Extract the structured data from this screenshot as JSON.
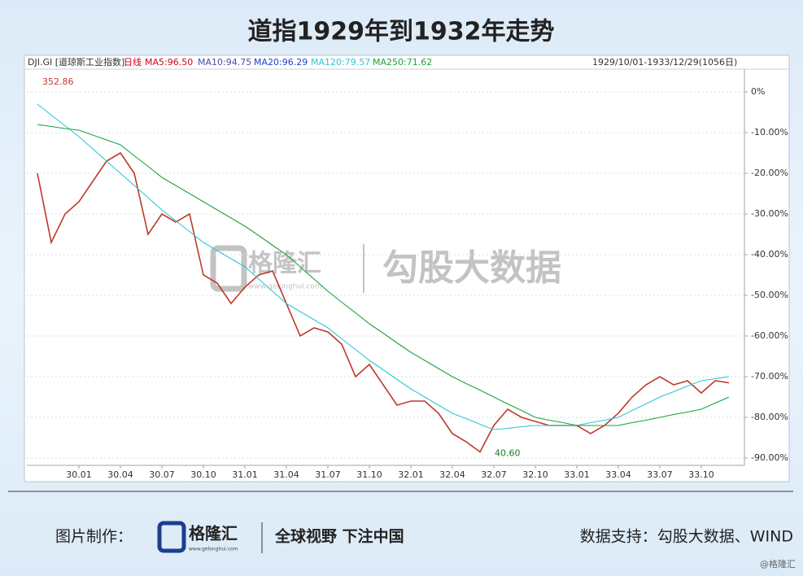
{
  "chart_data": {
    "type": "line",
    "title": "道指1929年到1932年走势",
    "symbol": "DJI.GI [道琼斯工业指数]",
    "period": "日线",
    "indicators": [
      "MA5:96.50",
      "MA10:94.75",
      "MA20:96.29"
    ],
    "range": "1929/10/01-1933/12/29(1056日)",
    "annotations": [
      "352.86",
      "40.60"
    ],
    "categories": [
      null,
      null,
      null,
      "30.01",
      null,
      null,
      "30.04",
      null,
      null,
      "30.07",
      null,
      null,
      "30.10",
      null,
      null,
      "31.01",
      null,
      null,
      "31.04",
      null,
      null,
      "31.07",
      null,
      null,
      "31.10",
      null,
      null,
      "32.01",
      null,
      null,
      "32.04",
      null,
      null,
      "32.07",
      null,
      null,
      "32.10",
      null,
      null,
      "33.01",
      null,
      null,
      "33.04",
      null,
      null,
      "33.07",
      null,
      null,
      "33.10",
      null,
      null
    ],
    "series": [
      {
        "name": "DJI.GI",
        "color": "#c0392b",
        "values": [
          -20,
          -37,
          -30,
          -27,
          -22,
          -17,
          -15,
          -20,
          -35,
          -30,
          -32,
          -30,
          -45,
          -47,
          -52,
          -48,
          -45,
          -44,
          -52,
          -60,
          -58,
          -59,
          -62,
          -70,
          -67,
          -72,
          -77,
          -76,
          -76,
          -79,
          -84,
          -86,
          -88.5,
          -82,
          -78,
          -80,
          -81,
          -82,
          -82,
          -82,
          -84,
          -82,
          -79,
          -75,
          -72,
          -70,
          -72,
          -71,
          -74,
          -71,
          -71.5
        ]
      },
      {
        "name": "MA120:79.57",
        "color": "#2ec7d6",
        "values": [
          -3,
          -5.7,
          -8.3,
          -11,
          -14,
          -17,
          -20,
          -23,
          -26,
          -29,
          -31.7,
          -34.3,
          -37,
          -39,
          -41,
          -43,
          -46,
          -49,
          -52,
          -54,
          -56,
          -58,
          -60.7,
          -63.3,
          -66,
          -68.3,
          -70.7,
          -73,
          -75,
          -77,
          -79,
          -80.3,
          -81.7,
          -83,
          -82.7,
          -82.3,
          -82,
          -82,
          -82,
          -82,
          -81.3,
          -80.7,
          -80,
          -78.3,
          -76.7,
          -75,
          -73.7,
          -72.3,
          -71,
          -70.5,
          -70
        ]
      },
      {
        "name": "MA250:71.62",
        "color": "#1aa33a",
        "values": [
          -8,
          -8.5,
          -9,
          -9.4,
          -10.6,
          -11.8,
          -13,
          -15.7,
          -18.3,
          -21,
          -23,
          -25,
          -27,
          -29,
          -31,
          -33,
          -35.3,
          -37.7,
          -40,
          -43,
          -46,
          -49,
          -51.7,
          -54.3,
          -57,
          -59.3,
          -61.7,
          -64,
          -66,
          -68,
          -70,
          -71.7,
          -73.3,
          -75,
          -76.7,
          -78.3,
          -80,
          -80.7,
          -81.3,
          -82,
          -82,
          -82,
          -82,
          -81.3,
          -80.7,
          -80,
          -79.3,
          -78.7,
          -78,
          -76.5,
          -75
        ]
      }
    ],
    "ylim": [
      -91.8,
      5.6
    ],
    "yticks": [
      {
        "value": 0,
        "label": "0%"
      },
      {
        "value": -10,
        "label": "-10.00%"
      },
      {
        "value": -20,
        "label": "-20.00%"
      },
      {
        "value": -30,
        "label": "-30.00%"
      },
      {
        "value": -40,
        "label": "-40.00%"
      },
      {
        "value": -50,
        "label": "-50.00%"
      },
      {
        "value": -60,
        "label": "-60.00%"
      },
      {
        "value": -70,
        "label": "-70.00%"
      },
      {
        "value": -80,
        "label": "-80.00%"
      },
      {
        "value": -90,
        "label": "-90.00%"
      }
    ],
    "grid": true
  },
  "watermark": {
    "brand": "格隆汇",
    "url": "www.gelonghui.com",
    "source": "勾股大数据"
  },
  "footer": {
    "made_by": "图片制作：",
    "brand": "格隆汇",
    "url": "www.gelonghui.com",
    "slogan": "全球视野 下注中国",
    "data_source": "数据支持：勾股大数据、WIND",
    "handle": "@格隆汇"
  }
}
